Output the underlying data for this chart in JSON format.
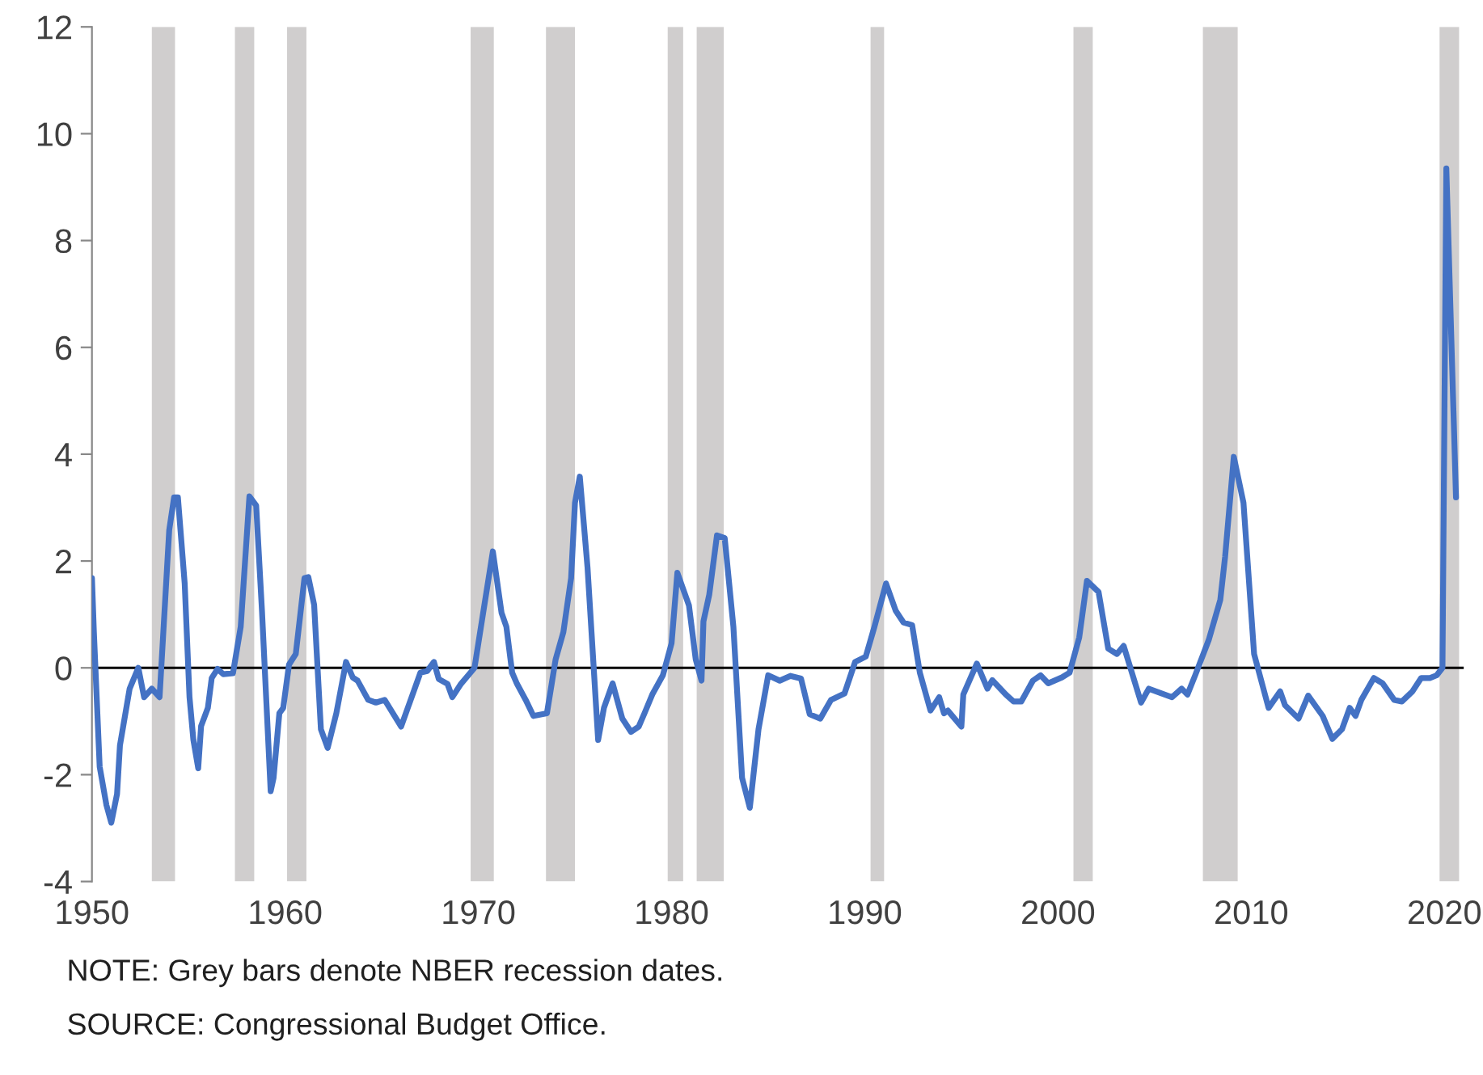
{
  "chart_data": {
    "type": "line",
    "x": [
      1950.0,
      1950.1,
      1950.4,
      1950.75,
      1951.0,
      1951.3,
      1951.45,
      1951.95,
      1952.4,
      1952.7,
      1953.1,
      1953.5,
      1954.0,
      1954.25,
      1954.45,
      1954.8,
      1955.05,
      1955.25,
      1955.5,
      1955.65,
      1956.0,
      1956.2,
      1956.5,
      1956.8,
      1957.3,
      1957.7,
      1958.15,
      1958.5,
      1958.8,
      1959.25,
      1959.4,
      1959.7,
      1959.9,
      1960.2,
      1960.55,
      1961.0,
      1961.2,
      1961.5,
      1961.85,
      1962.2,
      1962.65,
      1963.15,
      1963.5,
      1963.75,
      1964.3,
      1964.7,
      1965.15,
      1966.0,
      1967.0,
      1967.35,
      1967.7,
      1967.95,
      1968.4,
      1968.65,
      1969.1,
      1969.8,
      1970.2,
      1970.75,
      1971.2,
      1971.45,
      1971.75,
      1972.0,
      1972.45,
      1972.85,
      1973.55,
      1974.0,
      1974.4,
      1974.8,
      1975.0,
      1975.25,
      1975.65,
      1976.2,
      1976.5,
      1976.95,
      1977.45,
      1977.9,
      1978.3,
      1978.6,
      1979.0,
      1979.55,
      1980.0,
      1980.3,
      1980.9,
      1981.25,
      1981.55,
      1981.65,
      1981.95,
      1982.35,
      1982.75,
      1983.2,
      1983.65,
      1984.05,
      1984.5,
      1985.0,
      1985.6,
      1986.15,
      1986.7,
      1987.15,
      1987.7,
      1988.25,
      1988.95,
      1989.5,
      1990.05,
      1990.5,
      1991.1,
      1991.6,
      1992.0,
      1992.45,
      1992.85,
      1993.4,
      1993.85,
      1994.1,
      1994.3,
      1995.0,
      1995.1,
      1995.8,
      1996.35,
      1996.6,
      1997.3,
      1997.7,
      1998.1,
      1998.7,
      1999.1,
      1999.5,
      2000.2,
      2000.6,
      2001.1,
      2001.5,
      2002.1,
      2002.6,
      2003.05,
      2003.4,
      2004.3,
      2004.7,
      2005.9,
      2006.4,
      2006.7,
      2007.1,
      2007.8,
      2008.4,
      2008.65,
      2009.1,
      2009.6,
      2010.15,
      2010.9,
      2011.5,
      2011.75,
      2012.45,
      2012.95,
      2013.7,
      2014.2,
      2014.7,
      2015.1,
      2015.4,
      2015.7,
      2016.35,
      2016.8,
      2017.4,
      2017.8,
      2018.35,
      2018.8,
      2019.25,
      2019.6,
      2019.9,
      2020.1,
      2020.6
    ],
    "series": [
      {
        "color": "#4472c4",
        "values": [
          1.68,
          0.67,
          -1.85,
          -2.57,
          -2.9,
          -2.36,
          -1.45,
          -0.39,
          0.0,
          -0.55,
          -0.39,
          -0.55,
          2.58,
          3.19,
          3.19,
          1.58,
          -0.55,
          -1.35,
          -1.88,
          -1.09,
          -0.75,
          -0.19,
          -0.02,
          -0.12,
          -0.1,
          0.77,
          3.21,
          3.04,
          1.07,
          -2.31,
          -2.06,
          -0.85,
          -0.75,
          0.06,
          0.26,
          1.68,
          1.7,
          1.18,
          -1.15,
          -1.5,
          -0.85,
          0.11,
          -0.18,
          -0.24,
          -0.6,
          -0.65,
          -0.6,
          -1.1,
          -0.09,
          -0.06,
          0.11,
          -0.21,
          -0.3,
          -0.55,
          -0.3,
          0.0,
          0.92,
          2.18,
          1.03,
          0.77,
          -0.09,
          -0.3,
          -0.6,
          -0.9,
          -0.85,
          0.16,
          0.67,
          1.68,
          3.09,
          3.58,
          1.88,
          -1.35,
          -0.75,
          -0.29,
          -0.95,
          -1.2,
          -1.1,
          -0.85,
          -0.5,
          -0.14,
          0.46,
          1.78,
          1.17,
          0.16,
          -0.24,
          0.87,
          1.37,
          2.48,
          2.43,
          0.77,
          -2.06,
          -2.62,
          -1.15,
          -0.14,
          -0.24,
          -0.15,
          -0.2,
          -0.87,
          -0.95,
          -0.6,
          -0.48,
          0.11,
          0.21,
          0.77,
          1.58,
          1.07,
          0.85,
          0.8,
          -0.09,
          -0.8,
          -0.55,
          -0.85,
          -0.8,
          -1.1,
          -0.5,
          0.08,
          -0.39,
          -0.23,
          -0.5,
          -0.63,
          -0.63,
          -0.24,
          -0.14,
          -0.29,
          -0.18,
          -0.09,
          0.57,
          1.63,
          1.42,
          0.36,
          0.26,
          0.41,
          -0.65,
          -0.39,
          -0.55,
          -0.39,
          -0.5,
          -0.14,
          0.52,
          1.27,
          2.08,
          3.95,
          3.09,
          0.26,
          -0.75,
          -0.44,
          -0.7,
          -0.95,
          -0.52,
          -0.9,
          -1.33,
          -1.15,
          -0.75,
          -0.9,
          -0.6,
          -0.19,
          -0.29,
          -0.6,
          -0.63,
          -0.44,
          -0.19,
          -0.19,
          -0.14,
          0.0,
          9.35,
          3.19
        ]
      }
    ],
    "xlim": [
      1950,
      2021
    ],
    "ylim": [
      -4,
      12
    ],
    "xticks": [
      1950,
      1960,
      1970,
      1980,
      1990,
      2000,
      2010,
      2020
    ],
    "yticks": [
      -4,
      -2,
      0,
      2,
      4,
      6,
      8,
      10,
      12
    ],
    "grid": false,
    "legend": false,
    "marker": "none",
    "line_style": "solid",
    "ref_lines": [
      {
        "axis": "y",
        "value": 0,
        "color": "#000000"
      }
    ],
    "bands": [
      {
        "axis": "x",
        "from": 1953.1,
        "to": 1954.3,
        "color": "#d0cece"
      },
      {
        "axis": "x",
        "from": 1957.4,
        "to": 1958.4,
        "color": "#d0cece"
      },
      {
        "axis": "x",
        "from": 1960.1,
        "to": 1961.1,
        "color": "#d0cece"
      },
      {
        "axis": "x",
        "from": 1969.6,
        "to": 1970.8,
        "color": "#d0cece"
      },
      {
        "axis": "x",
        "from": 1973.5,
        "to": 1975.0,
        "color": "#d0cece"
      },
      {
        "axis": "x",
        "from": 1979.8,
        "to": 1980.6,
        "color": "#d0cece"
      },
      {
        "axis": "x",
        "from": 1981.3,
        "to": 1982.7,
        "color": "#d0cece"
      },
      {
        "axis": "x",
        "from": 1990.3,
        "to": 1991.0,
        "color": "#d0cece"
      },
      {
        "axis": "x",
        "from": 2000.8,
        "to": 2001.8,
        "color": "#d0cece"
      },
      {
        "axis": "x",
        "from": 2007.5,
        "to": 2009.3,
        "color": "#d0cece"
      },
      {
        "axis": "x",
        "from": 2019.75,
        "to": 2020.76,
        "color": "#d0cece"
      }
    ],
    "annotations": [
      "NOTE: Grey bars denote NBER recession dates.",
      "SOURCE: Congressional Budget Office."
    ]
  }
}
